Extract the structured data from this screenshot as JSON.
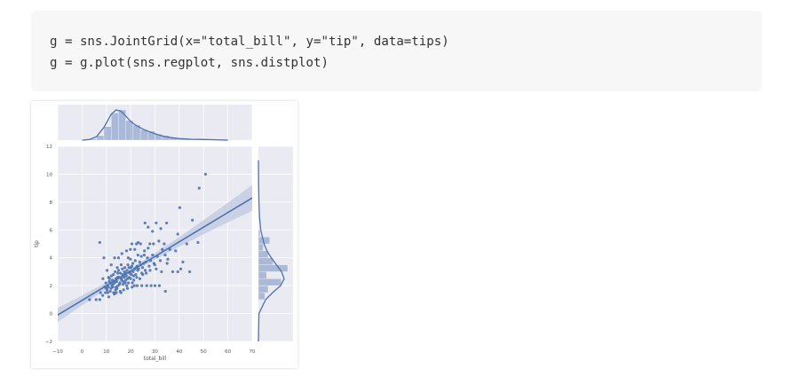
{
  "code": {
    "lines": [
      "g = sns.JointGrid(x=\"total_bill\", y=\"tip\", data=tips)",
      "g = g.plot(sns.regplot, sns.distplot)"
    ]
  },
  "chart_data": {
    "type": "scatter",
    "title": "",
    "xlabel": "total_bill",
    "ylabel": "tip",
    "xlim": [
      -10,
      70
    ],
    "ylim": [
      -2,
      12
    ],
    "xticks": [
      "−10",
      "0",
      "10",
      "20",
      "30",
      "40",
      "50",
      "60",
      "70"
    ],
    "yticks": [
      "−2",
      "0",
      "2",
      "4",
      "6",
      "8",
      "10",
      "12"
    ],
    "grid": true,
    "colors": {
      "accent": "#4c72b0",
      "panel": "#eaeaf2",
      "ci_band": "#c5cde3"
    },
    "regression": {
      "x": [
        -10,
        70
      ],
      "y": [
        -0.1,
        8.3
      ],
      "ci_low_at_70": 7.6,
      "ci_high_at_70": 9.1
    },
    "points": [
      [
        3.1,
        1.0
      ],
      [
        5.8,
        1.0
      ],
      [
        7.3,
        1.0
      ],
      [
        7.6,
        1.5
      ],
      [
        8.5,
        1.3
      ],
      [
        9.6,
        1.5
      ],
      [
        10.1,
        1.8
      ],
      [
        10.3,
        1.7
      ],
      [
        10.6,
        1.5
      ],
      [
        11.0,
        1.2
      ],
      [
        11.6,
        1.6
      ],
      [
        12.3,
        2.0
      ],
      [
        12.7,
        2.1
      ],
      [
        13.0,
        1.5
      ],
      [
        13.4,
        2.2
      ],
      [
        13.9,
        1.9
      ],
      [
        14.3,
        2.3
      ],
      [
        14.8,
        2.0
      ],
      [
        15.4,
        2.1
      ],
      [
        15.7,
        1.6
      ],
      [
        16.3,
        2.4
      ],
      [
        16.9,
        2.1
      ],
      [
        17.3,
        2.6
      ],
      [
        17.8,
        2.2
      ],
      [
        18.2,
        2.7
      ],
      [
        18.7,
        2.5
      ],
      [
        19.1,
        2.2
      ],
      [
        19.7,
        3.0
      ],
      [
        20.3,
        2.8
      ],
      [
        20.7,
        2.2
      ],
      [
        21.0,
        3.0
      ],
      [
        21.6,
        3.2
      ],
      [
        22.1,
        2.8
      ],
      [
        22.7,
        3.4
      ],
      [
        23.3,
        3.2
      ],
      [
        24.1,
        3.5
      ],
      [
        24.6,
        2.9
      ],
      [
        25.3,
        3.6
      ],
      [
        26.0,
        3.1
      ],
      [
        26.9,
        4.0
      ],
      [
        27.6,
        3.4
      ],
      [
        28.2,
        3.8
      ],
      [
        29.0,
        4.2
      ],
      [
        29.9,
        3.5
      ],
      [
        31.0,
        4.1
      ],
      [
        32.2,
        3.8
      ],
      [
        33.0,
        4.6
      ],
      [
        34.2,
        4.2
      ],
      [
        35.3,
        3.9
      ],
      [
        10.5,
        2.0
      ],
      [
        11.3,
        2.5
      ],
      [
        11.9,
        1.8
      ],
      [
        12.9,
        2.8
      ],
      [
        13.6,
        3.0
      ],
      [
        14.0,
        2.5
      ],
      [
        14.6,
        2.6
      ],
      [
        15.0,
        3.1
      ],
      [
        15.8,
        2.9
      ],
      [
        16.6,
        3.2
      ],
      [
        17.1,
        1.7
      ],
      [
        17.6,
        3.3
      ],
      [
        18.4,
        2.0
      ],
      [
        18.9,
        3.5
      ],
      [
        19.4,
        2.6
      ],
      [
        19.9,
        3.9
      ],
      [
        20.5,
        3.4
      ],
      [
        21.3,
        2.4
      ],
      [
        21.9,
        3.8
      ],
      [
        22.5,
        2.6
      ],
      [
        23.0,
        4.2
      ],
      [
        23.8,
        2.5
      ],
      [
        24.4,
        4.1
      ],
      [
        25.0,
        2.8
      ],
      [
        25.7,
        4.5
      ],
      [
        26.4,
        2.9
      ],
      [
        27.2,
        4.7
      ],
      [
        28.0,
        3.1
      ],
      [
        29.4,
        5.0
      ],
      [
        30.5,
        3.2
      ],
      [
        31.6,
        5.2
      ],
      [
        32.7,
        3.0
      ],
      [
        33.8,
        5.0
      ],
      [
        35.0,
        3.6
      ],
      [
        36.1,
        4.6
      ],
      [
        37.3,
        3.0
      ],
      [
        38.5,
        4.5
      ],
      [
        39.4,
        3.0
      ],
      [
        40.6,
        3.2
      ],
      [
        41.5,
        3.7
      ],
      [
        43.1,
        5.0
      ],
      [
        44.3,
        3.0
      ],
      [
        45.4,
        6.7
      ],
      [
        47.7,
        5.1
      ],
      [
        48.2,
        9.0
      ],
      [
        50.8,
        10.0
      ],
      [
        40.2,
        7.6
      ],
      [
        39.4,
        5.7
      ],
      [
        34.8,
        6.5
      ],
      [
        32.4,
        6.1
      ],
      [
        30.5,
        6.5
      ],
      [
        29.0,
        5.9
      ],
      [
        27.2,
        6.2
      ],
      [
        25.9,
        6.5
      ],
      [
        24.1,
        5.0
      ],
      [
        23.1,
        5.1
      ],
      [
        22.4,
        5.0
      ],
      [
        20.5,
        5.0
      ],
      [
        19.9,
        4.6
      ],
      [
        18.3,
        4.5
      ],
      [
        16.4,
        4.3
      ],
      [
        15.0,
        4.0
      ],
      [
        13.4,
        4.0
      ],
      [
        12.0,
        3.5
      ],
      [
        10.3,
        3.1
      ],
      [
        9.0,
        4.0
      ],
      [
        7.3,
        5.1
      ],
      [
        8.6,
        2.5
      ],
      [
        9.3,
        1.9
      ],
      [
        13.3,
        1.4
      ],
      [
        14.1,
        1.5
      ],
      [
        16.0,
        1.5
      ],
      [
        18.7,
        1.8
      ],
      [
        20.6,
        1.9
      ],
      [
        22.7,
        2.0
      ],
      [
        24.6,
        2.0
      ],
      [
        26.6,
        2.0
      ],
      [
        28.4,
        2.0
      ],
      [
        30.0,
        2.0
      ],
      [
        31.8,
        2.0
      ],
      [
        34.3,
        1.6
      ],
      [
        14.5,
        3.3
      ],
      [
        16.2,
        2.5
      ],
      [
        17.9,
        2.9
      ],
      [
        19.0,
        4.0
      ],
      [
        20.1,
        3.3
      ],
      [
        21.7,
        4.6
      ],
      [
        23.7,
        3.7
      ],
      [
        25.6,
        4.2
      ],
      [
        27.9,
        5.0
      ],
      [
        29.6,
        3.6
      ],
      [
        11.7,
        2.2
      ],
      [
        12.5,
        2.4
      ],
      [
        13.8,
        1.7
      ],
      [
        15.2,
        2.6
      ],
      [
        16.8,
        2.8
      ],
      [
        18.0,
        2.4
      ],
      [
        19.6,
        2.9
      ],
      [
        21.2,
        2.7
      ],
      [
        22.9,
        3.1
      ],
      [
        24.9,
        3.3
      ],
      [
        10.8,
        1.9
      ],
      [
        11.2,
        2.3
      ],
      [
        12.1,
        2.7
      ],
      [
        13.1,
        2.3
      ],
      [
        14.4,
        1.8
      ],
      [
        15.6,
        2.2
      ],
      [
        17.0,
        2.3
      ],
      [
        18.5,
        3.1
      ],
      [
        20.0,
        2.5
      ],
      [
        21.5,
        2.0
      ],
      [
        9.8,
        2.2
      ],
      [
        10.9,
        2.6
      ],
      [
        12.6,
        1.9
      ],
      [
        14.7,
        2.9
      ],
      [
        16.1,
        3.5
      ],
      [
        17.4,
        3.0
      ],
      [
        19.3,
        3.3
      ],
      [
        20.9,
        3.6
      ],
      [
        22.3,
        3.3
      ],
      [
        26.2,
        3.7
      ]
    ],
    "top_marginal": {
      "variable": "total_bill",
      "bins": [
        [
          3,
          6,
          1
        ],
        [
          6,
          9,
          3
        ],
        [
          9,
          12,
          9
        ],
        [
          12,
          15,
          18
        ],
        [
          15,
          18,
          20
        ],
        [
          18,
          21,
          13
        ],
        [
          21,
          24,
          10
        ],
        [
          24,
          27,
          7
        ],
        [
          27,
          30,
          6
        ],
        [
          30,
          33,
          4
        ],
        [
          33,
          36,
          3
        ],
        [
          36,
          39,
          2
        ],
        [
          39,
          42,
          1
        ],
        [
          42,
          45,
          1
        ],
        [
          45,
          48,
          1
        ],
        [
          48,
          51,
          1
        ]
      ],
      "kde": [
        [
          0,
          0.0
        ],
        [
          3,
          0.02
        ],
        [
          6,
          0.12
        ],
        [
          9,
          0.42
        ],
        [
          12,
          0.86
        ],
        [
          14,
          1.0
        ],
        [
          16,
          0.96
        ],
        [
          18,
          0.8
        ],
        [
          20,
          0.62
        ],
        [
          22,
          0.5
        ],
        [
          24,
          0.41
        ],
        [
          26,
          0.33
        ],
        [
          28,
          0.27
        ],
        [
          30,
          0.21
        ],
        [
          33,
          0.14
        ],
        [
          36,
          0.09
        ],
        [
          40,
          0.05
        ],
        [
          45,
          0.03
        ],
        [
          50,
          0.02
        ],
        [
          55,
          0.01
        ],
        [
          60,
          0.0
        ]
      ]
    },
    "right_marginal": {
      "variable": "tip",
      "bins": [
        [
          1,
          1.5,
          4
        ],
        [
          1.5,
          2,
          6
        ],
        [
          2,
          2.5,
          14
        ],
        [
          2.5,
          3,
          5
        ],
        [
          3,
          3.5,
          18
        ],
        [
          3.5,
          4,
          9
        ],
        [
          4,
          4.5,
          6
        ],
        [
          4.5,
          5,
          3
        ],
        [
          5,
          5.5,
          7
        ],
        [
          5.5,
          6,
          1
        ]
      ],
      "kde": [
        [
          -2,
          0.0
        ],
        [
          0,
          0.02
        ],
        [
          1,
          0.28
        ],
        [
          1.5,
          0.55
        ],
        [
          2,
          0.86
        ],
        [
          2.5,
          1.0
        ],
        [
          3,
          0.9
        ],
        [
          3.5,
          0.7
        ],
        [
          4,
          0.5
        ],
        [
          4.5,
          0.33
        ],
        [
          5,
          0.22
        ],
        [
          6,
          0.09
        ],
        [
          7,
          0.04
        ],
        [
          8,
          0.02
        ],
        [
          9,
          0.01
        ],
        [
          10,
          0.005
        ],
        [
          11,
          0.0
        ]
      ]
    }
  }
}
